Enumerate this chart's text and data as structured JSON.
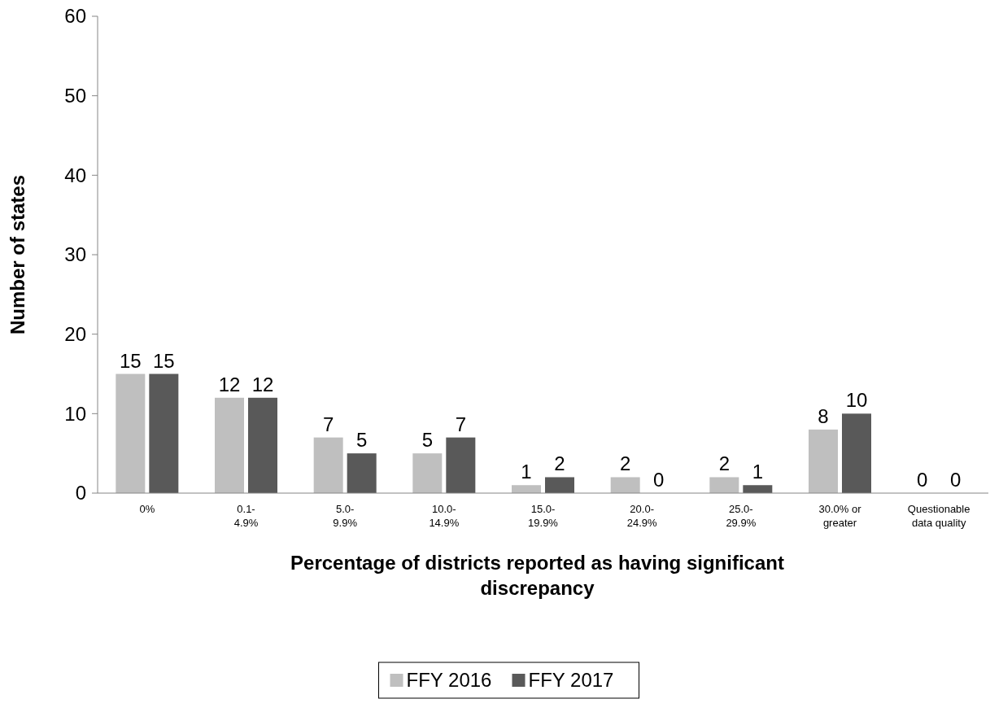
{
  "chart_data": {
    "type": "bar",
    "xlabel": "Percentage of districts reported as having significant discrepancy",
    "ylabel": "Number of states",
    "categories": [
      "0%",
      "0.1-4.9%",
      "5.0-9.9%",
      "10.0-14.9%",
      "15.0-19.9%",
      "20.0-24.9%",
      "25.0-29.9%",
      "30.0% or greater",
      "Questionable data quality"
    ],
    "series": [
      {
        "name": "FFY 2016",
        "color": "#bfbfbf",
        "values": [
          15,
          12,
          7,
          5,
          1,
          2,
          2,
          8,
          0
        ]
      },
      {
        "name": "FFY 2017",
        "color": "#595959",
        "values": [
          15,
          12,
          5,
          7,
          2,
          0,
          1,
          10,
          0
        ]
      }
    ],
    "ylim": [
      0,
      60
    ],
    "yticks": [
      0,
      10,
      20,
      30,
      40,
      50,
      60
    ],
    "data_labels": true,
    "legend": "bottom",
    "grid": false
  }
}
